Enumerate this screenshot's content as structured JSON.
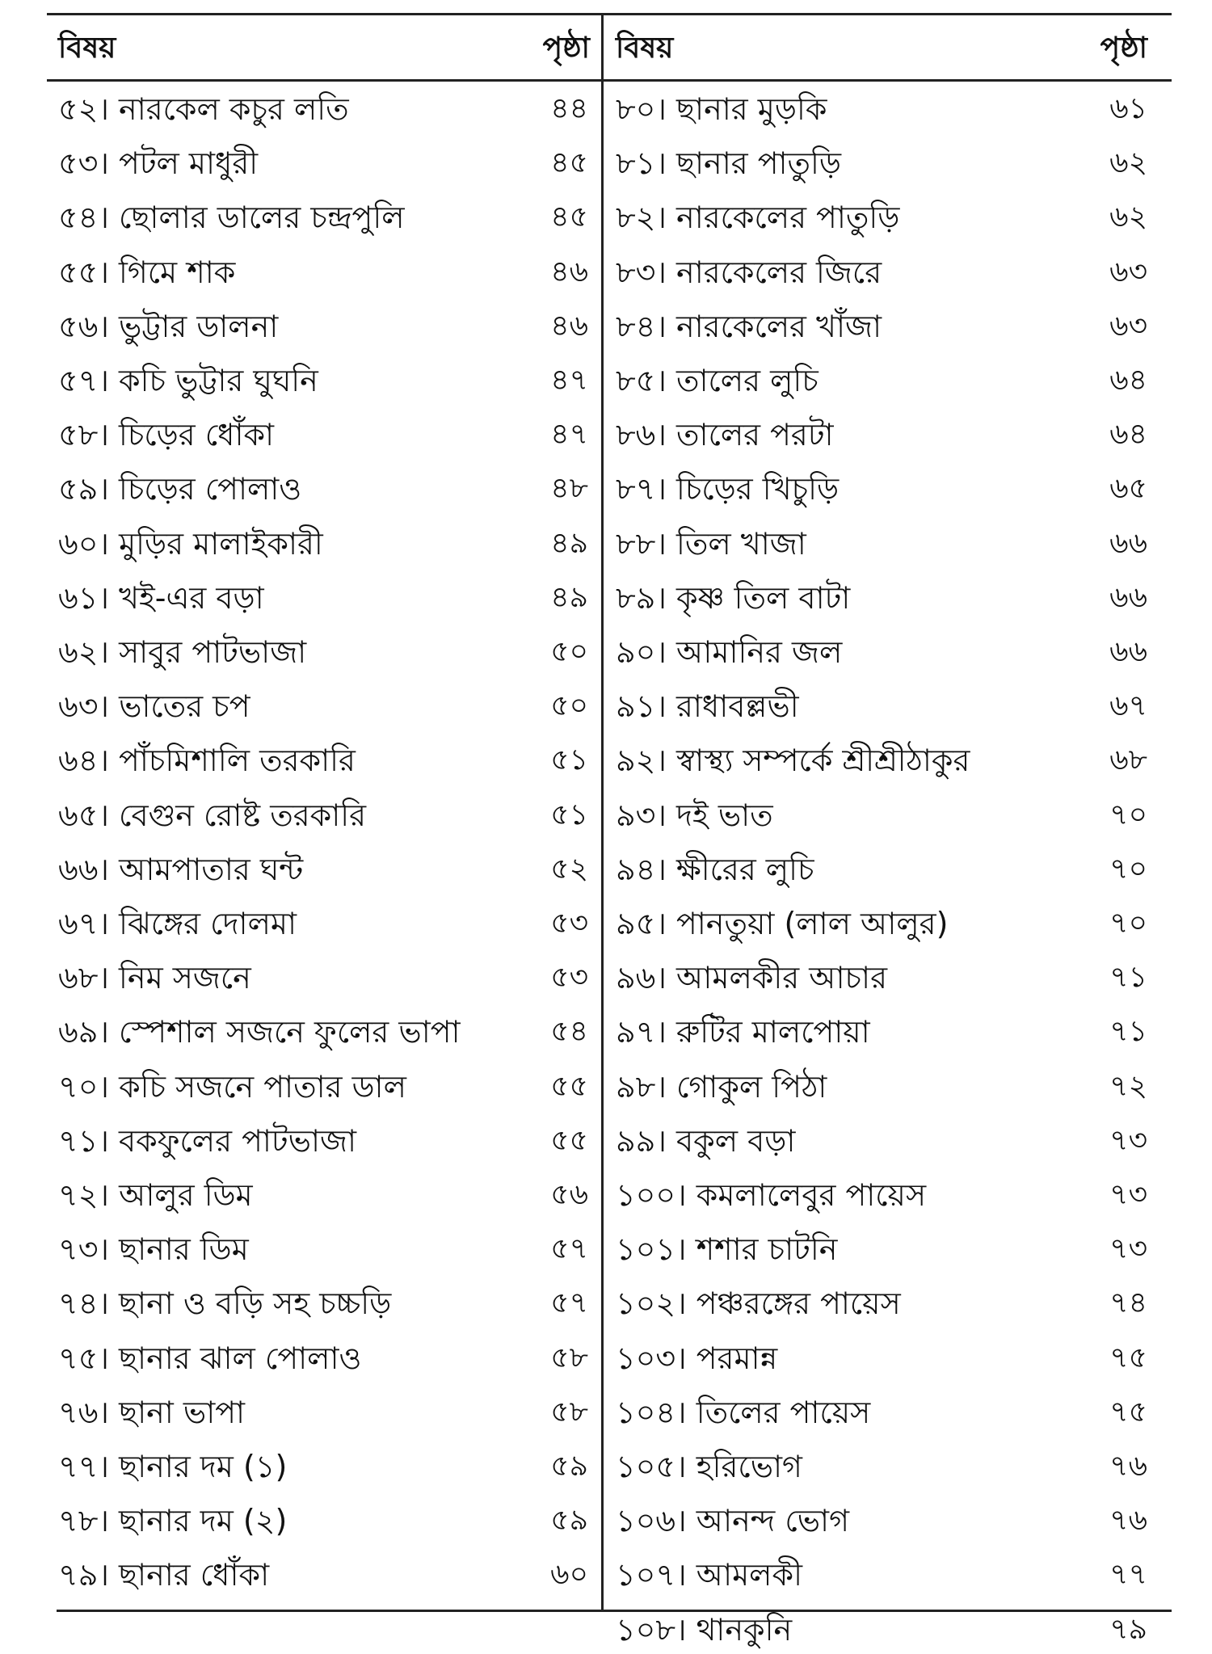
{
  "header": {
    "subject": "বিষয়",
    "page": "পৃষ্ঠা"
  },
  "left": [
    {
      "item": "৫২। নারকেল কচুর লতি",
      "page": "৪৪"
    },
    {
      "item": "৫৩। পটল মাধুরী",
      "page": "৪৫"
    },
    {
      "item": "৫৪। ছোলার ডালের চন্দ্রপুলি",
      "page": "৪৫"
    },
    {
      "item": "৫৫। গিমে শাক",
      "page": "৪৬"
    },
    {
      "item": "৫৬। ভুট্টার ডালনা",
      "page": "৪৬"
    },
    {
      "item": "৫৭। কচি ভুট্টার ঘুঘনি",
      "page": "৪৭"
    },
    {
      "item": "৫৮। চিড়ের ধোঁকা",
      "page": "৪৭"
    },
    {
      "item": "৫৯। চিড়ের পোলাও",
      "page": "৪৮"
    },
    {
      "item": "৬০। মুড়ির মালাইকারী",
      "page": "৪৯"
    },
    {
      "item": "৬১। খই-এর বড়া",
      "page": "৪৯"
    },
    {
      "item": "৬২। সাবুর পাটভাজা",
      "page": "৫০"
    },
    {
      "item": "৬৩। ভাতের চপ",
      "page": "৫০"
    },
    {
      "item": "৬৪। পাঁচমিশালি তরকারি",
      "page": "৫১"
    },
    {
      "item": "৬৫। বেগুন রোষ্ট তরকারি",
      "page": "৫১"
    },
    {
      "item": "৬৬। আমপাতার ঘন্ট",
      "page": "৫২"
    },
    {
      "item": "৬৭। ঝিঙ্গের দোলমা",
      "page": "৫৩"
    },
    {
      "item": "৬৮। নিম সজনে",
      "page": "৫৩"
    },
    {
      "item": "৬৯। স্পেশাল সজনে ফুলের ভাপা",
      "page": "৫৪"
    },
    {
      "item": "৭০। কচি সজনে পাতার ডাল",
      "page": "৫৫"
    },
    {
      "item": "৭১। বকফুলের পাটভাজা",
      "page": "৫৫"
    },
    {
      "item": "৭২। আলুর ডিম",
      "page": "৫৬"
    },
    {
      "item": "৭৩। ছানার ডিম",
      "page": "৫৭"
    },
    {
      "item": "৭৪। ছানা ও বড়ি সহ চচ্চড়ি",
      "page": "৫৭"
    },
    {
      "item": "৭৫। ছানার ঝাল পোলাও",
      "page": "৫৮"
    },
    {
      "item": "৭৬। ছানা ভাপা",
      "page": "৫৮"
    },
    {
      "item": "৭৭। ছানার দম (১)",
      "page": "৫৯"
    },
    {
      "item": "৭৮। ছানার দম (২)",
      "page": "৫৯"
    },
    {
      "item": "৭৯। ছানার ধোঁকা",
      "page": "৬০"
    }
  ],
  "right": [
    {
      "item": "৮০। ছানার মুড়কি",
      "page": "৬১"
    },
    {
      "item": "৮১। ছানার পাতুড়ি",
      "page": "৬২"
    },
    {
      "item": "৮২। নারকেলের পাতুড়ি",
      "page": "৬২"
    },
    {
      "item": "৮৩। নারকেলের জিরে",
      "page": "৬৩"
    },
    {
      "item": "৮৪। নারকেলের খাঁজা",
      "page": "৬৩"
    },
    {
      "item": "৮৫। তালের লুচি",
      "page": "৬৪"
    },
    {
      "item": "৮৬। তালের পরটা",
      "page": "৬৪"
    },
    {
      "item": "৮৭। চিড়ের খিচুড়ি",
      "page": "৬৫"
    },
    {
      "item": "৮৮। তিল খাজা",
      "page": "৬৬"
    },
    {
      "item": "৮৯। কৃষ্ণ তিল বাটা",
      "page": "৬৬"
    },
    {
      "item": "৯০। আমানির জল",
      "page": "৬৬"
    },
    {
      "item": "৯১। রাধাবল্লভী",
      "page": "৬৭"
    },
    {
      "item": "৯২। স্বাস্থ্য সম্পর্কে শ্রীশ্রীঠাকুর",
      "page": "৬৮"
    },
    {
      "item": "৯৩। দই ভাত",
      "page": "৭০"
    },
    {
      "item": "৯৪। ক্ষীরের লুচি",
      "page": "৭০"
    },
    {
      "item": "৯৫। পানতুয়া (লাল আলুর)",
      "page": "৭০"
    },
    {
      "item": "৯৬। আমলকীর আচার",
      "page": "৭১"
    },
    {
      "item": "৯৭। রুটির মালপোয়া",
      "page": "৭১"
    },
    {
      "item": "৯৮। গোকুল পিঠা",
      "page": "৭২"
    },
    {
      "item": "৯৯। বকুল বড়া",
      "page": "৭৩"
    },
    {
      "item": "১০০। কমলালেবুর পায়েস",
      "page": "৭৩"
    },
    {
      "item": "১০১। শশার চাটনি",
      "page": "৭৩"
    },
    {
      "item": "১০২। পঞ্চরঙ্গের পায়েস",
      "page": "৭৪"
    },
    {
      "item": "১০৩। পরমান্ন",
      "page": "৭৫"
    },
    {
      "item": "১০৪। তিলের পায়েস",
      "page": "৭৫"
    },
    {
      "item": "১০৫। হরিভোগ",
      "page": "৭৬"
    },
    {
      "item": "১০৬। আনন্দ ভোগ",
      "page": "৭৬"
    },
    {
      "item": "১০৭। আমলকী",
      "page": "৭৭"
    },
    {
      "item": "১০৮। থানকুনি",
      "page": "৭৯"
    }
  ]
}
